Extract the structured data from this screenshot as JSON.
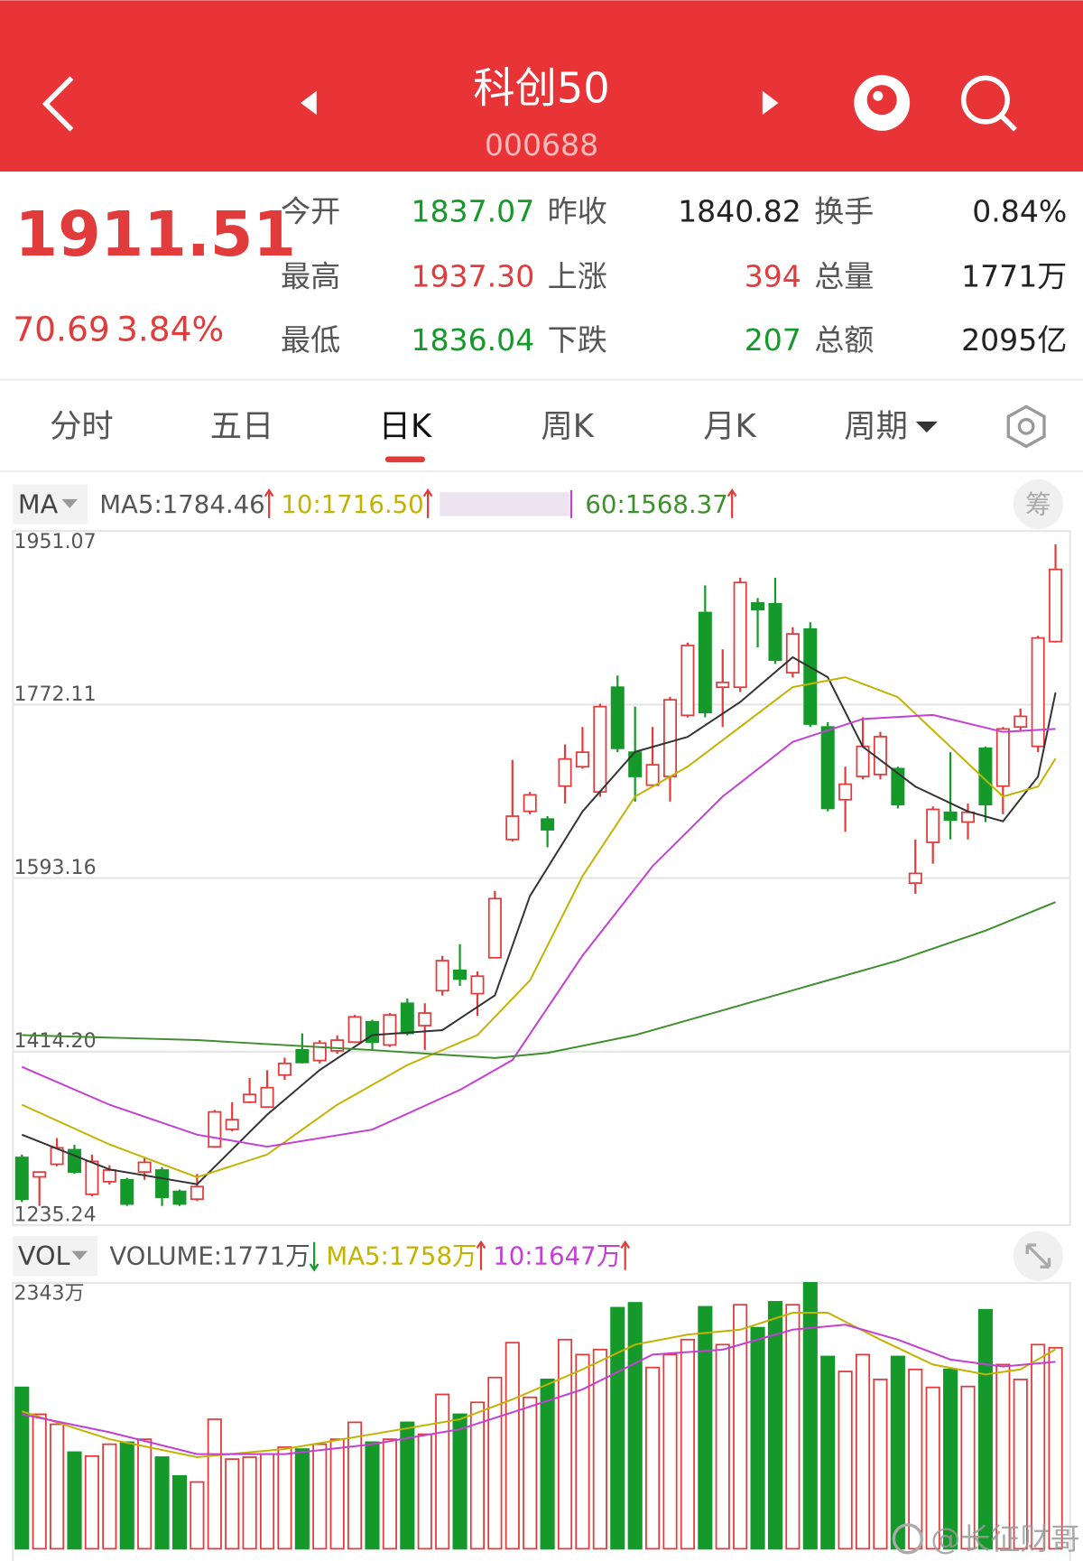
{
  "header": {
    "title": "科创50",
    "code": "000688"
  },
  "quote": {
    "price": "1911.51",
    "change": "70.69",
    "change_pct": "3.84%",
    "stats": [
      [
        "今开",
        "1837.07"
      ],
      [
        "昨收",
        "1840.82"
      ],
      [
        "换手",
        "0.84%"
      ],
      [
        "最高",
        "1937.30"
      ],
      [
        "上涨",
        "394"
      ],
      [
        "总量",
        "1771万"
      ],
      [
        "最低",
        "1836.04"
      ],
      [
        "下跌",
        "207"
      ],
      [
        "总额",
        "2095亿"
      ]
    ]
  },
  "tabs": {
    "items": [
      "分时",
      "五日",
      "日K",
      "周K",
      "月K",
      "周期"
    ],
    "active": 2
  },
  "indicator_buttons": {
    "price": "MA",
    "volume": "VOL",
    "chips": "筹"
  },
  "watermark": "@长征财哥",
  "chart_data": [
    {
      "type": "candlestick",
      "up_color": "#e23b3b",
      "down_color": "#14992a",
      "grid": true,
      "ylim": [
        1235.24,
        1951.07
      ],
      "yticks": [
        1951.07,
        1772.11,
        1593.16,
        {
          "value": 1414.2,
          "label": "1414.20"
        },
        1235.24
      ],
      "open": [
        1305,
        1285,
        1298,
        1313,
        1267,
        1280,
        1282,
        1290,
        1292,
        1270,
        1262,
        1316,
        1334,
        1362,
        1357,
        1390,
        1416,
        1405,
        1415,
        1424,
        1445,
        1421,
        1464,
        1441,
        1477,
        1498,
        1474,
        1511,
        1633,
        1662,
        1654,
        1688,
        1708,
        1682,
        1790,
        1723,
        1689,
        1698,
        1761,
        1867,
        1790,
        1790,
        1877,
        1876,
        1805,
        1850,
        1749,
        1674,
        1698,
        1700,
        1706,
        1588,
        1630,
        1661,
        1651,
        1727,
        1688,
        1749,
        1729,
        1837.07
      ],
      "high": [
        1308,
        1290,
        1325,
        1318,
        1308,
        1297,
        1284,
        1305,
        1295,
        1272,
        1288,
        1354,
        1362,
        1387,
        1395,
        1408,
        1433,
        1426,
        1431,
        1452,
        1447,
        1454,
        1469,
        1464,
        1513,
        1525,
        1497,
        1580,
        1715,
        1682,
        1657,
        1731,
        1749,
        1773,
        1802,
        1770,
        1749,
        1780,
        1836,
        1895,
        1829,
        1903,
        1882,
        1903,
        1852,
        1857,
        1754,
        1708,
        1759,
        1744,
        1708,
        1633,
        1667,
        1723,
        1670,
        1729,
        1749,
        1768,
        1843,
        1937.3
      ],
      "low": [
        1259,
        1255,
        1296,
        1288,
        1265,
        1277,
        1255,
        1282,
        1255,
        1255,
        1260,
        1315,
        1332,
        1361,
        1357,
        1385,
        1402,
        1402,
        1412,
        1423,
        1416,
        1419,
        1431,
        1416,
        1472,
        1482,
        1451,
        1511,
        1631,
        1659,
        1625,
        1670,
        1706,
        1677,
        1723,
        1672,
        1687,
        1672,
        1759,
        1759,
        1749,
        1785,
        1831,
        1814,
        1800,
        1749,
        1662,
        1641,
        1695,
        1695,
        1665,
        1577,
        1608,
        1633,
        1633,
        1651,
        1659,
        1744,
        1723,
        1836.04
      ],
      "close": [
        1262,
        1290,
        1315,
        1290,
        1301,
        1292,
        1257,
        1300,
        1264,
        1257,
        1275,
        1352,
        1344,
        1370,
        1377,
        1402,
        1403,
        1423,
        1426,
        1450,
        1424,
        1452,
        1433,
        1454,
        1508,
        1489,
        1492,
        1572,
        1657,
        1679,
        1643,
        1716,
        1723,
        1770,
        1727,
        1698,
        1710,
        1777,
        1833,
        1764,
        1795,
        1898,
        1870,
        1818,
        1845,
        1752,
        1665,
        1690,
        1729,
        1739,
        1669,
        1598,
        1664,
        1653,
        1661,
        1669,
        1747,
        1760,
        1840.82,
        1911.51
      ],
      "series": [
        {
          "name": "MA5:1784.46",
          "color": "#333333",
          "trend": "up",
          "x": [
            0,
            5,
            10,
            14,
            17,
            20,
            24,
            27,
            29,
            32,
            35,
            38,
            41,
            44,
            46,
            48,
            51,
            54,
            56,
            58,
            59
          ],
          "values": [
            1328.5,
            1292.7,
            1277.3,
            1349.1,
            1395.3,
            1431.2,
            1436.3,
            1472.2,
            1574.7,
            1661.9,
            1723.4,
            1738.8,
            1774.7,
            1820.9,
            1800.3,
            1728.6,
            1687.5,
            1661.9,
            1651.7,
            1697.8,
            1784.46
          ]
        },
        {
          "name": "10:1716.50",
          "color": "#c2b300",
          "trend": "up",
          "x": [
            0,
            5,
            10,
            14,
            18,
            22,
            26,
            29,
            32,
            35,
            38,
            41,
            44,
            47,
            50,
            53,
            56,
            58,
            59
          ],
          "values": [
            1359.4,
            1318.4,
            1284.6,
            1308.1,
            1359.4,
            1400.4,
            1431.2,
            1487.6,
            1595.2,
            1677.3,
            1708.1,
            1749.1,
            1790.1,
            1800.3,
            1779.8,
            1728.6,
            1677.3,
            1687.5,
            1716.5
          ]
        },
        {
          "color": "#c43fd4",
          "x": [
            0,
            5,
            10,
            14,
            20,
            25,
            28,
            32,
            36,
            40,
            44,
            48,
            52,
            56,
            59
          ],
          "values": [
            1398.4,
            1359.4,
            1328.5,
            1316.2,
            1333.7,
            1374.7,
            1405.5,
            1513.2,
            1605.5,
            1677.3,
            1733.7,
            1757.3,
            1761.4,
            1743.9,
            1747
          ]
        },
        {
          "name": "60:1568.37",
          "color": "#3f8f2f",
          "trend": "up",
          "x": [
            0,
            10,
            20,
            27,
            30,
            35,
            40,
            45,
            50,
            55,
            59
          ],
          "values": [
            1431.2,
            1426.1,
            1415.8,
            1407.6,
            1412.8,
            1431.2,
            1456.8,
            1482.5,
            1508.1,
            1538.9,
            1568.37
          ]
        }
      ]
    },
    {
      "type": "bar",
      "up_color": "#e23b3b",
      "down_color": "#14992a",
      "ylim": [
        0,
        2343
      ],
      "yticks": [
        {
          "value": 2343,
          "label": "2343万"
        }
      ],
      "series": [
        {
          "name": "VOLUME:1771万",
          "color": "#555555",
          "trend": "down",
          "values": [
            1422,
            1185,
            1097,
            851,
            816,
            921,
            939,
            965,
            807,
            641,
            588,
            1141,
            790,
            807,
            834,
            895,
            878,
            921,
            965,
            1114,
            939,
            965,
            1114,
            1009,
            1360,
            1185,
            1290,
            1509,
            1816,
            1334,
            1492,
            1843,
            1711,
            1755,
            2124,
            2167,
            1597,
            1711,
            1843,
            2132,
            1799,
            2150,
            1948,
            2176,
            2150,
            2343,
            1694,
            1562,
            1711,
            1492,
            1694,
            1580,
            1422,
            1580,
            1430,
            2106,
            1623,
            1492,
            1799,
            1771
          ]
        },
        {
          "name": "MA5:1758万",
          "color": "#c2b300",
          "trend": "up",
          "x": [
            0,
            5,
            10,
            15,
            20,
            25,
            28,
            32,
            35,
            38,
            41,
            44,
            46,
            49,
            52,
            55,
            57,
            59
          ],
          "values": [
            1211,
            965,
            807,
            878,
            1009,
            1141,
            1316,
            1580,
            1799,
            1887,
            1931,
            2080,
            2080,
            1843,
            1623,
            1536,
            1580,
            1758
          ]
        },
        {
          "name": "10:1647万",
          "color": "#c43fd4",
          "trend": "up",
          "x": [
            0,
            5,
            10,
            15,
            20,
            25,
            28,
            32,
            36,
            40,
            44,
            47,
            50,
            53,
            56,
            59
          ],
          "values": [
            1185,
            1027,
            834,
            834,
            921,
            1053,
            1202,
            1404,
            1711,
            1755,
            1931,
            1974,
            1843,
            1667,
            1606,
            1647
          ]
        }
      ]
    }
  ]
}
